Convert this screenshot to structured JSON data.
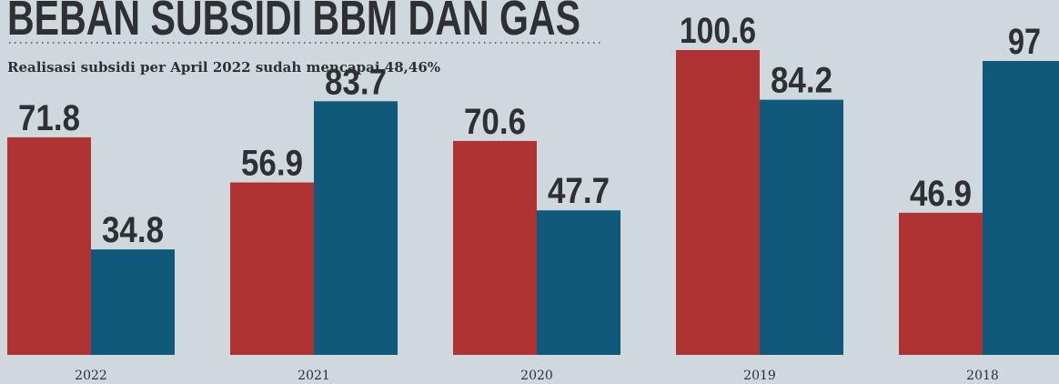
{
  "chart_data": {
    "type": "bar",
    "title": "BEBAN SUBSIDI BBM DAN GAS",
    "subtitle": "Realisasi subsidi per April 2022 sudah mencapai 48,46%",
    "categories": [
      "2022",
      "2021",
      "2020",
      "2019",
      "2018"
    ],
    "series": [
      {
        "color": "#b03333",
        "values": [
          71.8,
          56.9,
          70.6,
          100.6,
          46.9
        ]
      },
      {
        "color": "#11597a",
        "values": [
          34.8,
          83.7,
          47.7,
          84.2,
          97
        ]
      }
    ]
  }
}
